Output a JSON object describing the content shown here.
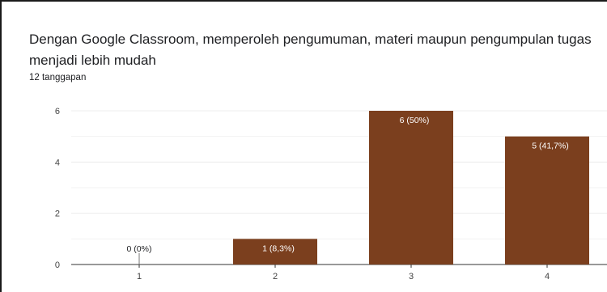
{
  "form": {
    "question": "Dengan Google Classroom, memperoleh pengumuman, materi maupun pengumpulan tugas menjadi lebih mudah",
    "responses": "12 tanggapan"
  },
  "colors": {
    "bar": "#7b3f1e",
    "grid": "#ececec",
    "axis": "#333333",
    "text": "#202124"
  },
  "chart_data": {
    "type": "bar",
    "title": "Dengan Google Classroom, memperoleh pengumuman, materi maupun pengumpulan tugas menjadi lebih mudah",
    "categories": [
      "1",
      "2",
      "3",
      "4"
    ],
    "values": [
      0,
      1,
      6,
      5
    ],
    "data_labels": [
      "0 (0%)",
      "1 (8,3%)",
      "6 (50%)",
      "5 (41,7%)"
    ],
    "yticks": [
      0,
      2,
      4,
      6
    ],
    "ylim": [
      0,
      6
    ],
    "grid": true,
    "legend": "none"
  }
}
